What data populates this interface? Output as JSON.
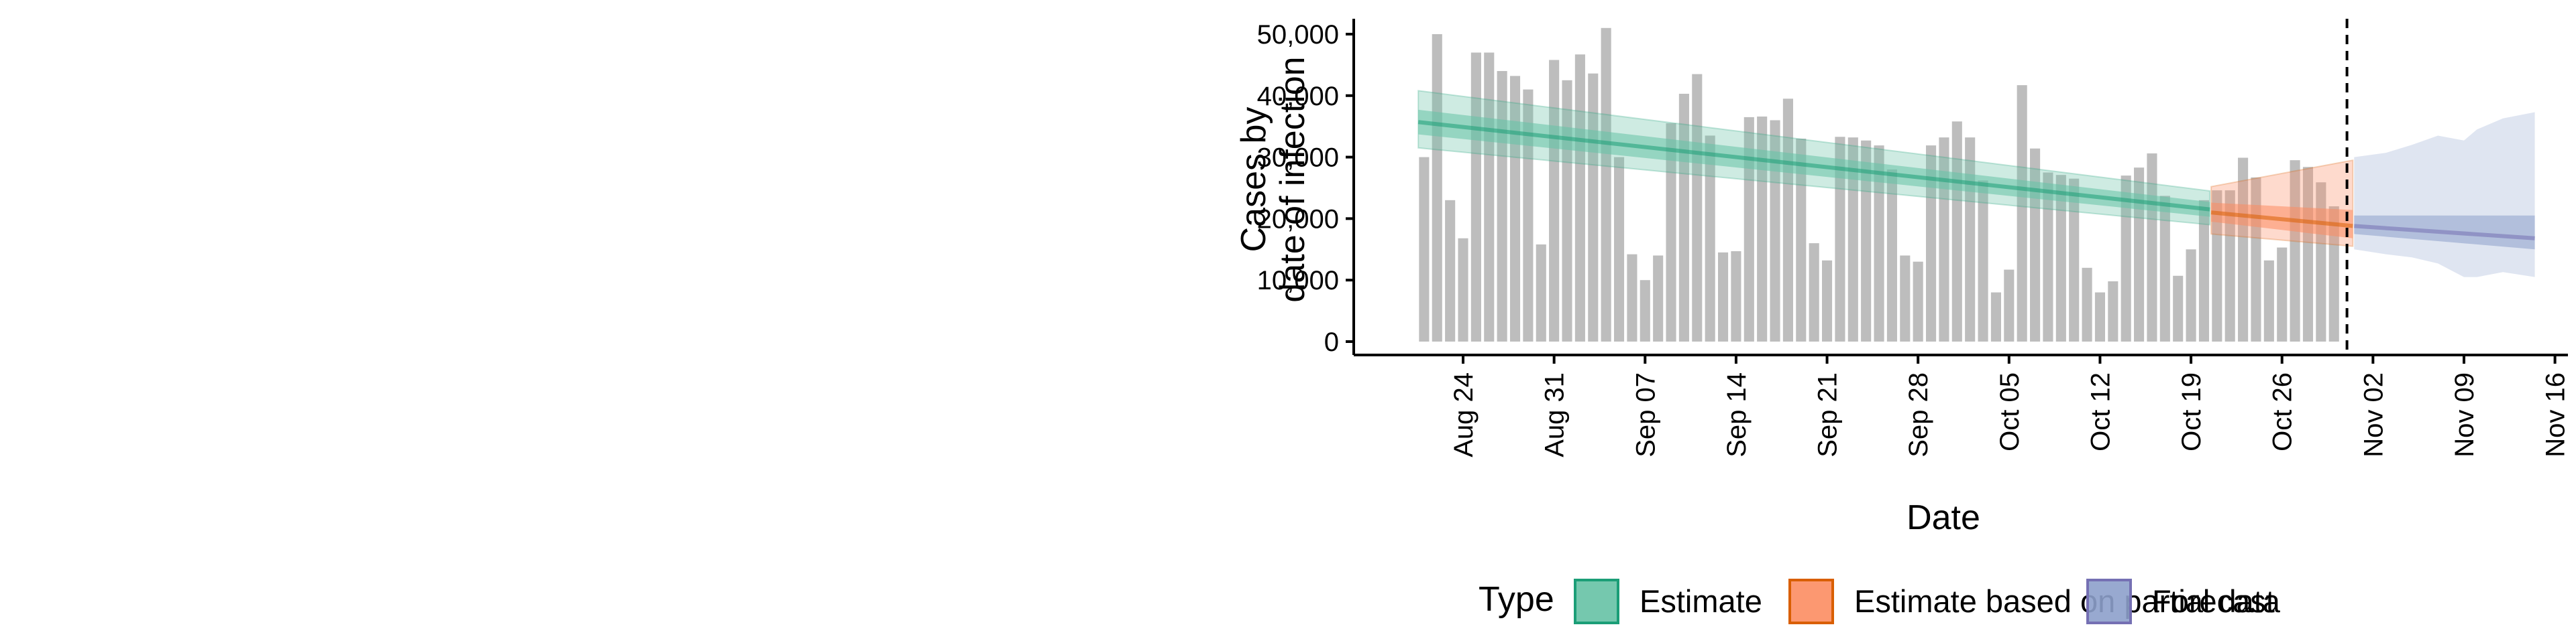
{
  "chart_data": {
    "type": "bar",
    "xlabel": "Date",
    "ylabel_lines": [
      "Cases by",
      "date of infection"
    ],
    "ylim": [
      0,
      52500
    ],
    "yticks": [
      0,
      10000,
      20000,
      30000,
      40000,
      50000
    ],
    "ytick_labels": [
      "0",
      "10,000",
      "20,000",
      "30,000",
      "40,000",
      "50,000"
    ],
    "xlim": [
      "2020-08-16",
      "2020-11-17"
    ],
    "xticks": [
      "2020-08-24",
      "2020-08-31",
      "2020-09-07",
      "2020-09-14",
      "2020-09-21",
      "2020-09-28",
      "2020-10-05",
      "2020-10-12",
      "2020-10-19",
      "2020-10-26",
      "2020-11-02",
      "2020-11-09",
      "2020-11-16"
    ],
    "xtick_labels": [
      "Aug 24",
      "Aug 31",
      "Sep 07",
      "Sep 14",
      "Sep 21",
      "Sep 28",
      "Oct 05",
      "Oct 12",
      "Oct 19",
      "Oct 26",
      "Nov 02",
      "Nov 09",
      "Nov 16"
    ],
    "bars": {
      "start_date": "2020-08-21",
      "color": "#bdbdbd",
      "values": [
        30000,
        50000,
        23000,
        16800,
        47000,
        47000,
        44000,
        43200,
        41000,
        15800,
        45800,
        42500,
        46700,
        43600,
        51000,
        30000,
        14200,
        10000,
        14000,
        35500,
        40300,
        43500,
        33500,
        14500,
        14700,
        36500,
        36600,
        36000,
        39500,
        33000,
        16000,
        13200,
        33300,
        33200,
        32700,
        31900,
        28000,
        14000,
        13000,
        31900,
        33200,
        35800,
        33200,
        26200,
        8000,
        11700,
        41700,
        31400,
        27500,
        27100,
        26500,
        12000,
        8000,
        9800,
        27000,
        28300,
        30600,
        23700,
        10700,
        15000,
        23000,
        24600,
        24600,
        29900,
        26700,
        13200,
        15300,
        29500,
        28400,
        25900,
        22000
      ]
    },
    "series": [
      {
        "name": "Estimate",
        "color": "#1b9e77",
        "fill": "#66c2a5",
        "start_date": "2020-08-21",
        "end_date": "2020-10-20",
        "median": [
          35700,
          21500
        ],
        "inner": [
          [
            33700,
            37700
          ],
          [
            20300,
            22700
          ]
        ],
        "outer": [
          [
            31500,
            40800
          ],
          [
            19000,
            24500
          ]
        ]
      },
      {
        "name": "Estimate based on partial data",
        "color": "#d95f02",
        "fill": "#fc8d62",
        "start_date": "2020-10-21",
        "end_date": "2020-10-31",
        "median": [
          21000,
          18800
        ],
        "inner": [
          [
            19500,
            22600
          ],
          [
            16800,
            21400
          ]
        ],
        "outer": [
          [
            17500,
            25200
          ],
          [
            15500,
            29500
          ]
        ]
      },
      {
        "name": "Forecast",
        "color": "#7570b3",
        "fill": "#8da0cb",
        "start_date": "2020-11-01",
        "end_date": "2020-11-14",
        "median": [
          18800,
          16800
        ],
        "inner": [
          [
            17500,
            20500
          ],
          [
            15000,
            20500
          ]
        ],
        "outer_x": [
          "2020-11-01",
          "2020-11-03",
          "2020-11-05",
          "2020-11-07",
          "2020-11-09",
          "2020-11-10",
          "2020-11-12",
          "2020-11-14"
        ],
        "outer_low": [
          15000,
          14200,
          13700,
          12700,
          10500,
          10500,
          11300,
          10500
        ],
        "outer_high": [
          30000,
          30700,
          32000,
          33500,
          32700,
          34500,
          36300,
          37300
        ]
      }
    ],
    "cutoff_date": "2020-10-31",
    "legend": {
      "title": "Type",
      "position": "bottom",
      "entries": [
        "Estimate",
        "Estimate based on partial data",
        "Forecast"
      ]
    },
    "grid": false
  }
}
